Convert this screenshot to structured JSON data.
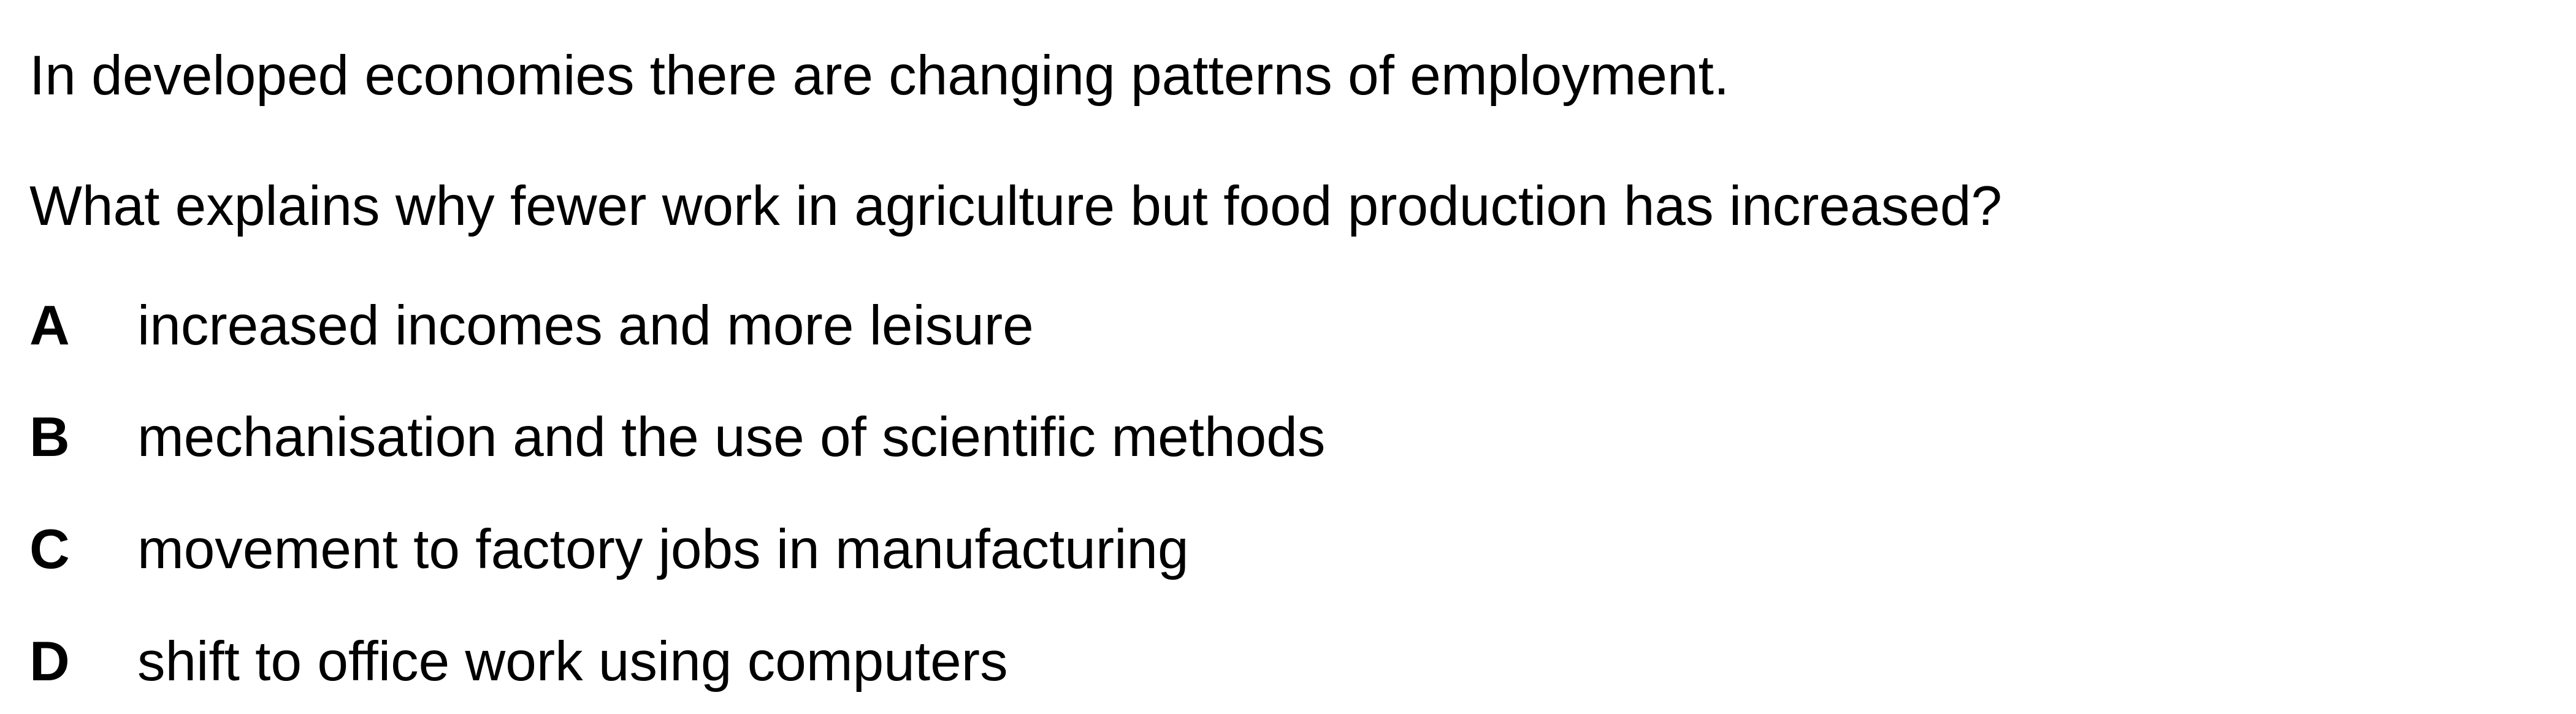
{
  "question": {
    "context": "In developed economies there are changing patterns of employment.",
    "prompt": "What explains why fewer work in agriculture but food production has increased?",
    "options": [
      {
        "letter": "A",
        "text": "increased incomes and more leisure"
      },
      {
        "letter": "B",
        "text": "mechanisation and the use of scientific methods"
      },
      {
        "letter": "C",
        "text": "movement to factory jobs in manufacturing"
      },
      {
        "letter": "D",
        "text": "shift to office work using computers"
      }
    ]
  }
}
